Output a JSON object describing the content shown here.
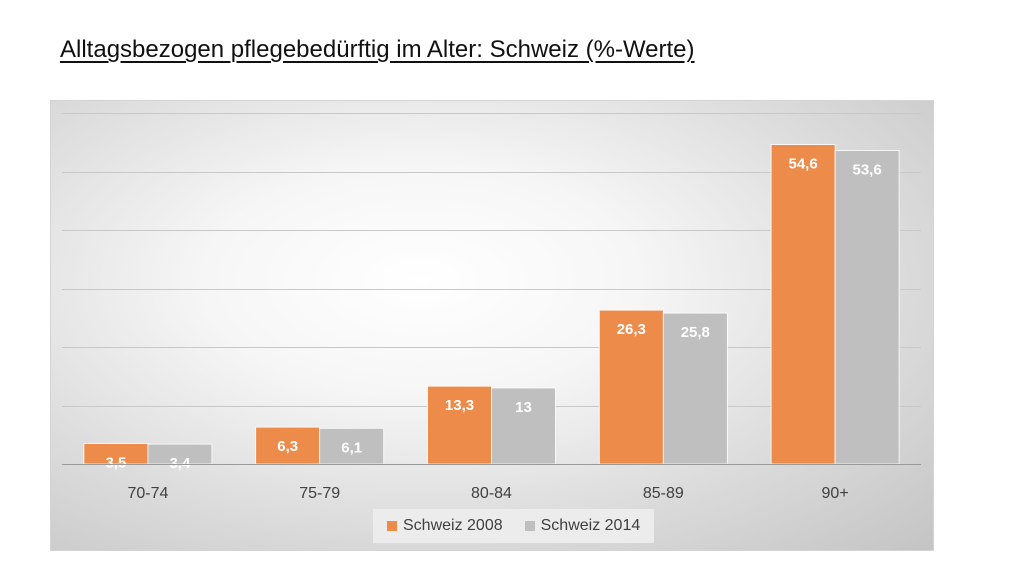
{
  "slide": {
    "title": "Alltagsbezogen pflegebedürftig im Alter: Schweiz (%-Werte)"
  },
  "chart_data": {
    "type": "bar",
    "title": "",
    "xlabel": "",
    "ylabel": "",
    "categories": [
      "70-74",
      "75-79",
      "80-84",
      "85-89",
      "90+"
    ],
    "series": [
      {
        "name": "Schweiz 2008",
        "values": [
          3.5,
          6.3,
          13.3,
          26.3,
          54.6
        ],
        "labels": [
          "3,5",
          "6,3",
          "13,3",
          "26,3",
          "54,6"
        ],
        "color": "#ED8B4B"
      },
      {
        "name": "Schweiz 2014",
        "values": [
          3.4,
          6.1,
          13,
          25.8,
          53.6
        ],
        "labels": [
          "3,4",
          "6,1",
          "13",
          "25,8",
          "53,6"
        ],
        "color": "#BFBFBF"
      }
    ],
    "ylim": [
      0,
      60
    ],
    "gridlines": [
      0,
      10,
      20,
      30,
      40,
      50,
      60
    ],
    "y_tick_labels_shown": false,
    "grid": true,
    "legend_position": "bottom"
  }
}
